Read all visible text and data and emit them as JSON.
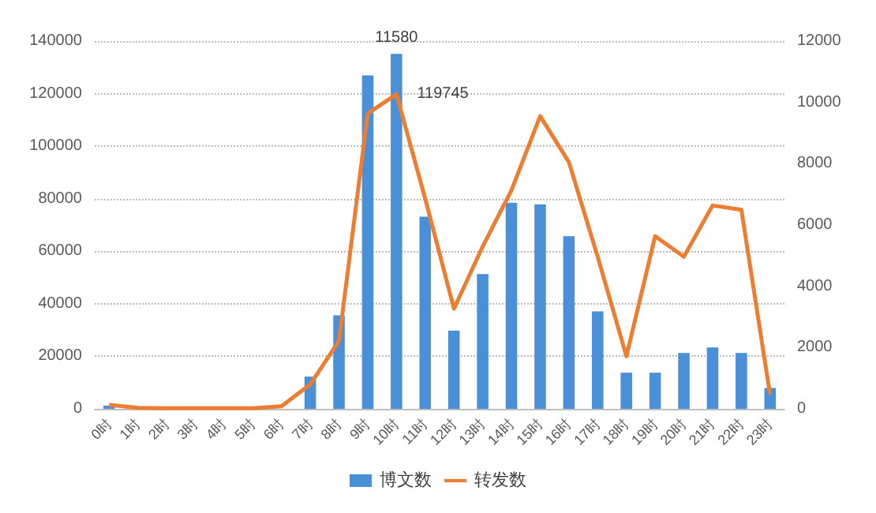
{
  "chart_data": {
    "type": "bar",
    "categories": [
      "0时",
      "1时",
      "2时",
      "3时",
      "4时",
      "5时",
      "6时",
      "7时",
      "8时",
      "9时",
      "10时",
      "11时",
      "12时",
      "13时",
      "14时",
      "15时",
      "16时",
      "17时",
      "18时",
      "19时",
      "20时",
      "21时",
      "22时",
      "23时"
    ],
    "series": [
      {
        "name": "博文数",
        "axis": "y2",
        "color": "#4a90d9",
        "values": [
          100,
          0,
          0,
          0,
          0,
          0,
          0,
          1050,
          3050,
          10880,
          11580,
          6270,
          2550,
          4400,
          6720,
          6670,
          5630,
          3180,
          1180,
          1180,
          1820,
          2000,
          1820,
          680
        ],
        "value_labels": [
          null,
          null,
          null,
          null,
          null,
          null,
          null,
          null,
          null,
          null,
          "11580",
          null,
          null,
          null,
          null,
          null,
          null,
          null,
          null,
          null,
          null,
          null,
          null,
          null
        ]
      },
      {
        "name": "转发数",
        "type": "line",
        "color": "#ed7d31",
        "values": [
          1500,
          400,
          200,
          200,
          200,
          200,
          1000,
          9300,
          25900,
          112400,
          119745,
          80000,
          38100,
          61800,
          83200,
          111400,
          93900,
          57900,
          20000,
          65700,
          57900,
          77400,
          75800,
          5400
        ],
        "value_labels": [
          null,
          null,
          null,
          null,
          null,
          null,
          null,
          null,
          null,
          null,
          "119745",
          null,
          null,
          null,
          null,
          null,
          null,
          null,
          null,
          null,
          null,
          null,
          null,
          null
        ]
      }
    ],
    "ylim": [
      0,
      140000
    ],
    "yticks": [
      0,
      20000,
      40000,
      60000,
      80000,
      100000,
      120000,
      140000
    ],
    "y2lim": [
      0,
      12000
    ],
    "y2ticks": [
      0,
      2000,
      4000,
      6000,
      8000,
      10000,
      12000
    ],
    "grid": "y",
    "legend": "bottom",
    "marker": "none"
  }
}
